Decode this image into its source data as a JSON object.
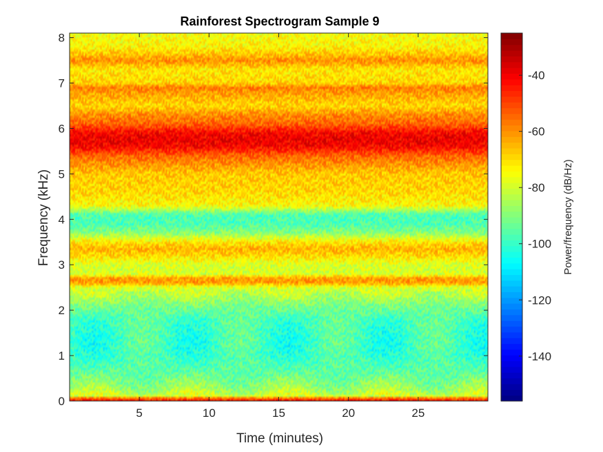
{
  "chart_data": {
    "type": "heatmap",
    "title": "Rainforest Spectrogram Sample 9",
    "xlabel": "Time (minutes)",
    "ylabel": "Frequency (kHz)",
    "colorbar_label": "Power/frequency (dB/Hz)",
    "colormap": "jet",
    "xlim": [
      0,
      30
    ],
    "ylim": [
      0,
      8.1
    ],
    "clim": [
      -156,
      -25
    ],
    "x_ticks": [
      5,
      10,
      15,
      20,
      25
    ],
    "x_tick_labels": [
      "5",
      "10",
      "15",
      "20",
      "25"
    ],
    "y_ticks": [
      0,
      1,
      2,
      3,
      4,
      5,
      6,
      7,
      8
    ],
    "y_tick_labels": [
      "0",
      "1",
      "2",
      "3",
      "4",
      "5",
      "6",
      "7",
      "8"
    ],
    "colorbar_ticks": [
      -140,
      -120,
      -100,
      -80,
      -60,
      -40
    ],
    "colorbar_tick_labels": [
      "-140",
      "-120",
      "-100",
      "-80",
      "-60",
      "-40"
    ],
    "frequency_profile_khz": [
      0,
      0.05,
      0.1,
      0.3,
      0.6,
      1.0,
      1.4,
      1.8,
      2.1,
      2.3,
      2.5,
      2.6,
      2.7,
      2.8,
      3.0,
      3.2,
      3.35,
      3.5,
      3.7,
      3.9,
      4.1,
      4.3,
      4.6,
      5.0,
      5.4,
      5.6,
      5.75,
      5.9,
      6.1,
      6.3,
      6.5,
      6.8,
      6.9,
      7.0,
      7.3,
      7.5,
      7.6,
      7.8,
      8.1
    ],
    "power_profile_db": [
      -45,
      -48,
      -80,
      -88,
      -95,
      -100,
      -100,
      -98,
      -92,
      -85,
      -80,
      -62,
      -62,
      -80,
      -80,
      -70,
      -65,
      -72,
      -90,
      -98,
      -98,
      -75,
      -70,
      -68,
      -55,
      -42,
      -40,
      -42,
      -55,
      -60,
      -70,
      -62,
      -58,
      -70,
      -72,
      -60,
      -66,
      -74,
      -76
    ]
  }
}
